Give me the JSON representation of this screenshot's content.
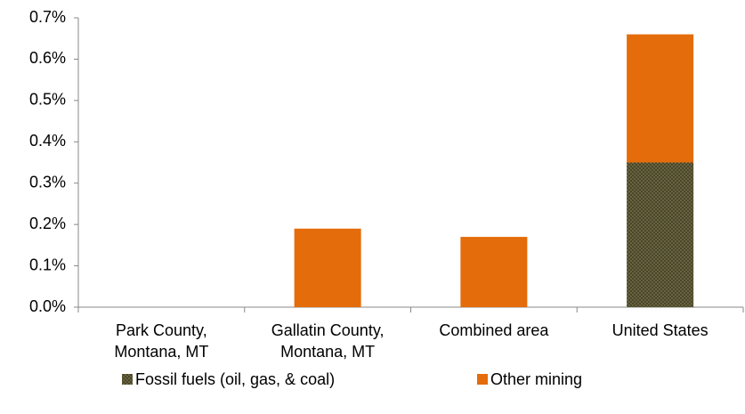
{
  "chart_data": {
    "type": "stacked_bar",
    "categories": [
      "Park County, Montana, MT",
      "Gallatin County, Montana, MT",
      "Combined area",
      "United States"
    ],
    "series": [
      {
        "name": "Fossil fuels (oil, gas, & coal)",
        "color": "#4a4628",
        "values": [
          0,
          0,
          0,
          0.35
        ]
      },
      {
        "name": "Other mining",
        "color": "#e46c0a",
        "values": [
          0,
          0.19,
          0.17,
          0.31
        ]
      }
    ],
    "ylim": [
      0,
      0.7
    ],
    "yticks": [
      {
        "value": 0,
        "label": "0.0%"
      },
      {
        "value": 0.1,
        "label": "0.1%"
      },
      {
        "value": 0.2,
        "label": "0.2%"
      },
      {
        "value": 0.3,
        "label": "0.3%"
      },
      {
        "value": 0.4,
        "label": "0.4%"
      },
      {
        "value": 0.5,
        "label": "0.5%"
      },
      {
        "value": 0.6,
        "label": "0.6%"
      },
      {
        "value": 0.7,
        "label": "0.7%"
      }
    ],
    "grid": false,
    "legend": "bottom"
  }
}
